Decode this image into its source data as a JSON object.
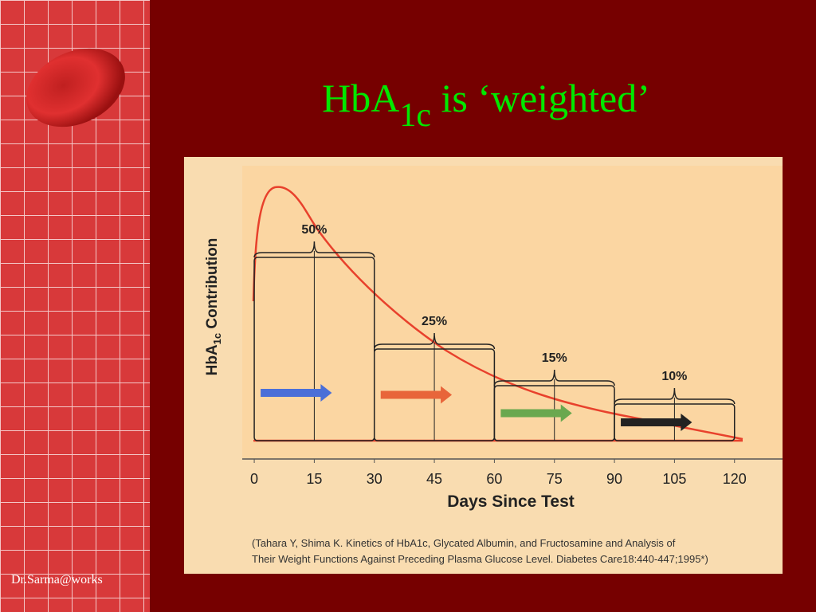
{
  "slide": {
    "title": {
      "main": "HbA",
      "subscript": "1c",
      "rest": " is ‘weighted’"
    },
    "footer": "Dr.Sarma@works"
  },
  "chart_data": {
    "type": "histogram",
    "xlabel": "Days Since Test",
    "ylabel": {
      "main": "HbA",
      "subscript": "1c",
      "rest": " Contribution"
    },
    "bins": [
      0,
      30,
      60,
      90,
      120
    ],
    "values": [
      50,
      25,
      15,
      10
    ],
    "value_labels": [
      "50%",
      "25%",
      "15%",
      "10%"
    ],
    "xlim": [
      -3,
      132
    ],
    "xticks": [
      0,
      15,
      30,
      45,
      60,
      75,
      90,
      105,
      120
    ],
    "color": "#e8412c",
    "source": [
      "(Tahara Y, Shima K. Kinetics of HbA1c, Glycated Albumin, and Fructosamine and Analysis of",
      "Their Weight Functions Against Preceding Plasma Glucose Level. Diabetes Care18:440-447;1995*)"
    ]
  }
}
